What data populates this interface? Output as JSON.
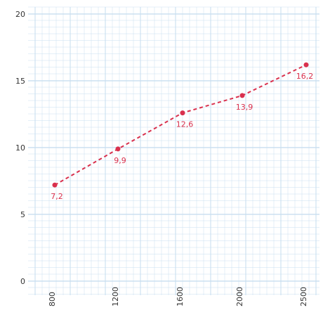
{
  "chart_data": {
    "type": "line",
    "x": [
      800,
      1200,
      1600,
      2000,
      2500
    ],
    "x_tick_labels": [
      "800",
      "1200",
      "1600",
      "2000",
      "2500"
    ],
    "series": [
      {
        "values": [
          7.2,
          9.9,
          12.6,
          13.9,
          16.2
        ]
      }
    ],
    "data_labels": [
      "7,2",
      "9,9",
      "12,6",
      "13,9",
      "16,2"
    ],
    "y_ticks": [
      0,
      5,
      10,
      15,
      20
    ],
    "y_tick_labels": [
      "0",
      "5",
      "10",
      "15",
      "20"
    ],
    "ylim": [
      0,
      20
    ],
    "grid": true,
    "line_style": "dashed",
    "markers": true,
    "colors": {
      "series": "#d9304d",
      "grid": "#c9dff0",
      "label": "#d9304d",
      "axis_text": "#333333"
    }
  }
}
